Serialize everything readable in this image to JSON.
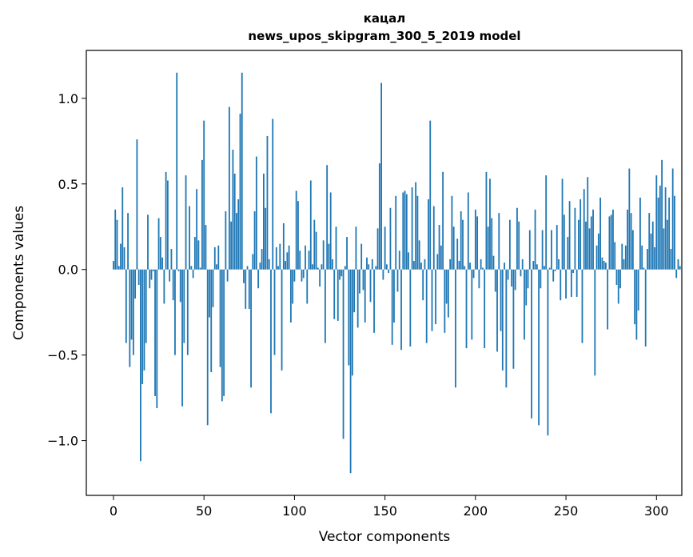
{
  "chart_data": {
    "type": "bar",
    "title_line1": "кацал",
    "title_line2": "news_upos_skipgram_300_5_2019 model",
    "xlabel": "Vector components",
    "ylabel": "Components values",
    "xlim": [
      -15,
      314
    ],
    "ylim": [
      -1.32,
      1.28
    ],
    "x_ticks": [
      0,
      50,
      100,
      150,
      200,
      250,
      300
    ],
    "x_tick_labels": [
      "0",
      "50",
      "100",
      "150",
      "200",
      "250",
      "300"
    ],
    "y_ticks": [
      -1.0,
      -0.5,
      0.0,
      0.5,
      1.0
    ],
    "y_tick_labels": [
      "−1.0",
      "−0.5",
      "0.0",
      "0.5",
      "1.0"
    ],
    "bar_color": "#1f77b4",
    "values": [
      0.05,
      0.35,
      0.29,
      0.02,
      0.15,
      0.48,
      0.13,
      -0.43,
      0.33,
      -0.57,
      -0.41,
      -0.5,
      -0.17,
      0.76,
      -0.09,
      -1.12,
      -0.67,
      -0.59,
      -0.43,
      0.32,
      -0.11,
      -0.06,
      -0.01,
      -0.74,
      -0.81,
      0.3,
      0.19,
      0.07,
      -0.2,
      0.57,
      0.52,
      -0.07,
      0.12,
      -0.18,
      -0.5,
      1.15,
      -0.01,
      -0.19,
      -0.8,
      -0.43,
      0.55,
      -0.5,
      0.37,
      0.02,
      -0.05,
      0.19,
      0.47,
      0.17,
      0.01,
      0.64,
      0.87,
      0.26,
      -0.91,
      -0.28,
      -0.6,
      -0.22,
      0.13,
      0.03,
      0.14,
      -0.57,
      -0.77,
      -0.74,
      0.34,
      -0.07,
      0.95,
      0.28,
      0.7,
      0.56,
      0.33,
      0.41,
      0.91,
      1.15,
      -0.08,
      -0.23,
      0.02,
      -0.23,
      -0.69,
      0.09,
      0.34,
      0.66,
      -0.11,
      0.04,
      0.12,
      0.56,
      0.36,
      0.78,
      0.06,
      -0.84,
      0.88,
      -0.5,
      0.13,
      0.02,
      0.15,
      -0.59,
      0.27,
      0.05,
      0.1,
      0.14,
      -0.31,
      -0.2,
      -0.07,
      0.46,
      0.4,
      0.11,
      -0.07,
      -0.05,
      0.14,
      -0.2,
      0.11,
      0.52,
      0.03,
      0.29,
      0.22,
      0.01,
      -0.1,
      0.03,
      0.17,
      -0.43,
      0.61,
      0.15,
      0.45,
      0.06,
      -0.29,
      0.25,
      -0.3,
      -0.06,
      -0.04,
      -0.99,
      0.02,
      0.19,
      -0.56,
      -1.19,
      -0.62,
      -0.25,
      0.25,
      -0.34,
      -0.14,
      0.15,
      -0.12,
      -0.31,
      0.07,
      0.03,
      -0.19,
      0.06,
      -0.37,
      0.02,
      0.24,
      0.62,
      1.09,
      -0.06,
      0.25,
      0.03,
      -0.02,
      0.36,
      -0.44,
      -0.31,
      0.43,
      -0.13,
      0.11,
      -0.47,
      0.45,
      0.46,
      0.44,
      0.1,
      -0.45,
      0.48,
      0.05,
      0.51,
      0.43,
      0.17,
      0.04,
      -0.18,
      0.06,
      -0.43,
      0.41,
      0.87,
      -0.36,
      0.37,
      -0.32,
      0.09,
      0.26,
      0.14,
      0.57,
      -0.37,
      -0.2,
      -0.28,
      0.06,
      0.43,
      0.25,
      -0.69,
      0.18,
      0.05,
      0.34,
      0.29,
      0.02,
      -0.46,
      0.45,
      0.04,
      -0.41,
      -0.05,
      0.35,
      0.31,
      -0.11,
      0.06,
      0.01,
      -0.46,
      0.57,
      0.25,
      0.53,
      0.3,
      0.08,
      -0.13,
      -0.48,
      0.33,
      -0.36,
      -0.59,
      0.04,
      -0.69,
      -0.06,
      0.29,
      -0.1,
      -0.58,
      -0.12,
      0.36,
      0.28,
      -0.04,
      0.06,
      -0.41,
      -0.21,
      -0.11,
      0.23,
      -0.87,
      0.05,
      0.35,
      0.03,
      -0.91,
      -0.11,
      0.23,
      0.02,
      0.55,
      -0.97,
      0.01,
      0.23,
      -0.07,
      -0.01,
      0.26,
      0.06,
      -0.18,
      0.53,
      0.32,
      -0.17,
      0.19,
      0.4,
      -0.16,
      -0.02,
      0.36,
      -0.16,
      0.29,
      0.41,
      -0.43,
      0.47,
      0.28,
      0.54,
      0.24,
      0.31,
      0.35,
      -0.62,
      0.14,
      0.21,
      0.42,
      0.07,
      0.05,
      0.04,
      -0.35,
      0.31,
      0.32,
      0.35,
      0.16,
      -0.09,
      -0.2,
      -0.11,
      0.15,
      0.06,
      0.14,
      0.35,
      0.59,
      0.33,
      0.23,
      -0.32,
      -0.41,
      -0.24,
      0.42,
      0.14,
      0.01,
      -0.45,
      0.12,
      0.33,
      0.21,
      0.28,
      0.13,
      0.55,
      0.42,
      0.49,
      0.64,
      0.24,
      0.48,
      0.29,
      0.42,
      0.12,
      0.59,
      0.43,
      -0.05,
      0.06,
      0.02
    ]
  }
}
